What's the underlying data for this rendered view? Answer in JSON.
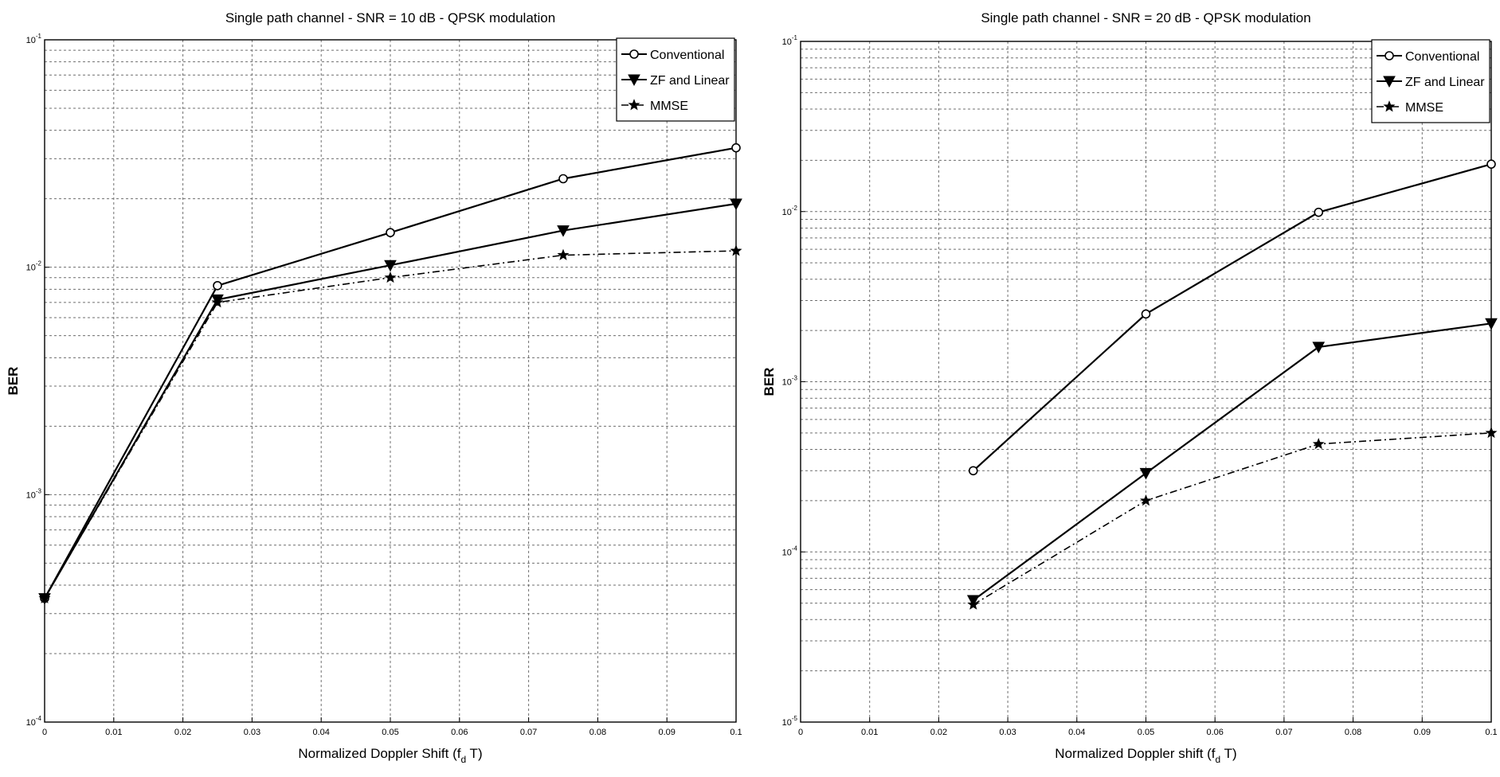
{
  "chart_data": [
    {
      "type": "line",
      "title": "Single path channel - SNR = 10 dB - QPSK modulation",
      "xlabel": "Normalized Doppler Shift (f_d T)",
      "ylabel": "BER",
      "xscale": "linear",
      "yscale": "log",
      "xlim": [
        0,
        0.1
      ],
      "ylim": [
        0.0001,
        0.1
      ],
      "xticks": [
        "0",
        "0.01",
        "0.02",
        "0.03",
        "0.04",
        "0.05",
        "0.06",
        "0.07",
        "0.08",
        "0.09",
        "0.1"
      ],
      "yticks": [
        "10^-4",
        "10^-3",
        "10^-2",
        "10^-1"
      ],
      "grid": true,
      "legend_position": "top-right",
      "series": [
        {
          "name": "Conventional",
          "marker": "circle",
          "line": "solid",
          "x": [
            0,
            0.025,
            0.05,
            0.075,
            0.1
          ],
          "y": [
            0.00035,
            0.0083,
            0.0142,
            0.0245,
            0.0335
          ]
        },
        {
          "name": "ZF and Linear",
          "marker": "triangle-down",
          "line": "solid",
          "x": [
            0,
            0.025,
            0.05,
            0.075,
            0.1
          ],
          "y": [
            0.00035,
            0.0072,
            0.0102,
            0.0145,
            0.019
          ]
        },
        {
          "name": "MMSE",
          "marker": "star",
          "line": "dash-dot",
          "x": [
            0,
            0.025,
            0.05,
            0.075,
            0.1
          ],
          "y": [
            0.00035,
            0.007,
            0.009,
            0.0113,
            0.0118
          ]
        }
      ]
    },
    {
      "type": "line",
      "title": "Single path channel - SNR = 20 dB - QPSK modulation",
      "xlabel": "Normalized Doppler shift (f_d T)",
      "ylabel": "BER",
      "xscale": "linear",
      "yscale": "log",
      "xlim": [
        0,
        0.1
      ],
      "ylim": [
        1e-05,
        0.1
      ],
      "xticks": [
        "0",
        "0.01",
        "0.02",
        "0.03",
        "0.04",
        "0.05",
        "0.06",
        "0.07",
        "0.08",
        "0.09",
        "0.1"
      ],
      "yticks": [
        "10^-5",
        "10^-4",
        "10^-3",
        "10^-2",
        "10^-1"
      ],
      "grid": true,
      "legend_position": "top-right",
      "series": [
        {
          "name": "Conventional",
          "marker": "circle",
          "line": "solid",
          "x": [
            0.025,
            0.05,
            0.075,
            0.1
          ],
          "y": [
            0.0003,
            0.0025,
            0.0099,
            0.019
          ]
        },
        {
          "name": "ZF and Linear",
          "marker": "triangle-down",
          "line": "solid",
          "x": [
            0.025,
            0.05,
            0.075,
            0.1
          ],
          "y": [
            5.2e-05,
            0.00029,
            0.0016,
            0.0022
          ]
        },
        {
          "name": "MMSE",
          "marker": "star",
          "line": "dash-dot",
          "x": [
            0.025,
            0.05,
            0.075,
            0.1
          ],
          "y": [
            4.9e-05,
            0.0002,
            0.00043,
            0.0005
          ]
        }
      ]
    }
  ]
}
